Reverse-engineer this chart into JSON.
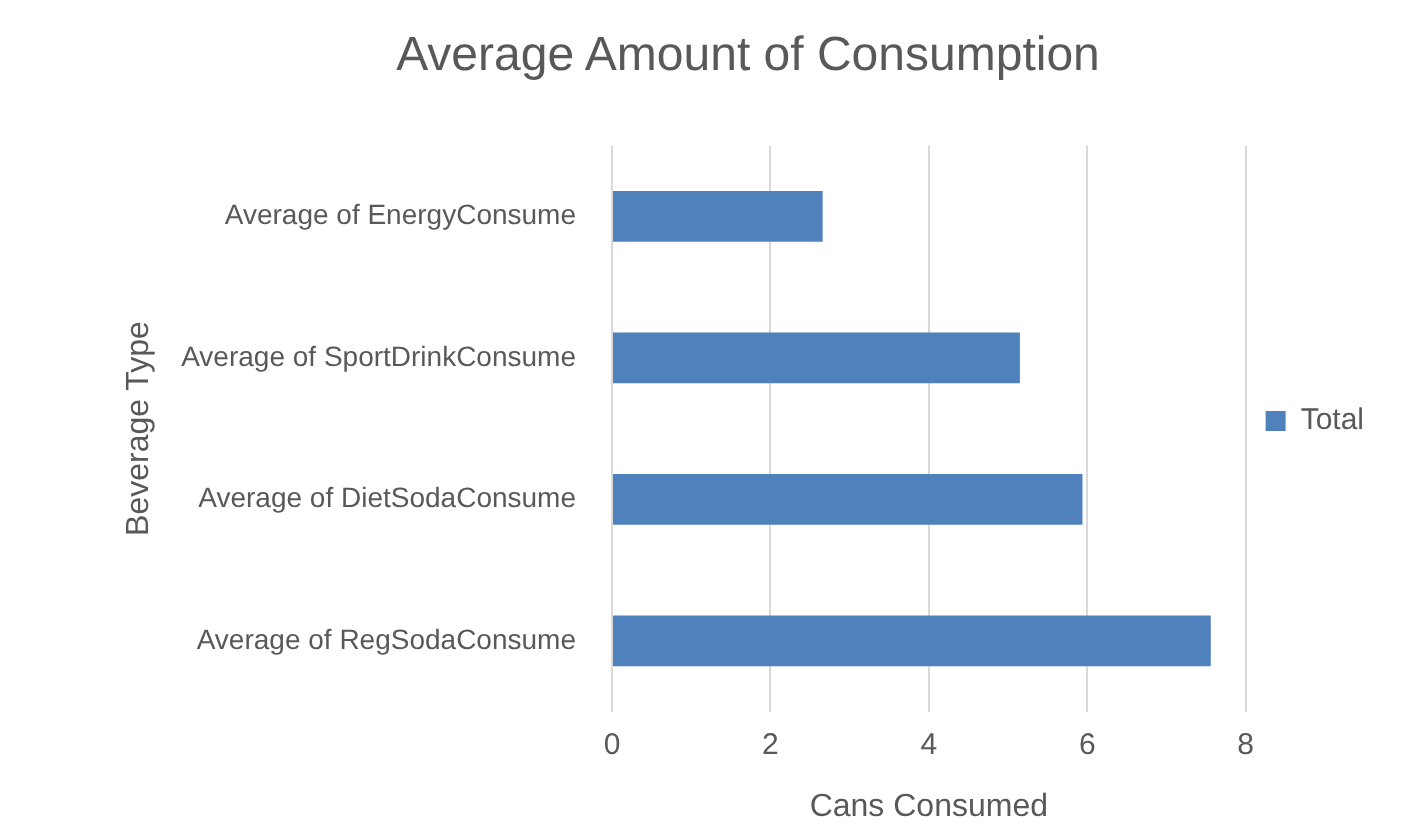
{
  "chart_data": {
    "type": "bar",
    "orientation": "horizontal",
    "title": "Average Amount of Consumption",
    "xlabel": "Cans Consumed",
    "ylabel": "Beverage Type",
    "categories": [
      "Average of EnergyConsume",
      "Average of SportDrinkConsume",
      "Average of DietSodaConsume",
      "Average of RegSodaConsume"
    ],
    "series": [
      {
        "name": "Total",
        "color": "#4f81bd",
        "values": [
          2.66,
          5.15,
          5.94,
          7.56
        ]
      }
    ],
    "xlim": [
      0,
      8
    ],
    "xticks": [
      0,
      2,
      4,
      6,
      8
    ],
    "grid": "x",
    "legend": "right"
  }
}
